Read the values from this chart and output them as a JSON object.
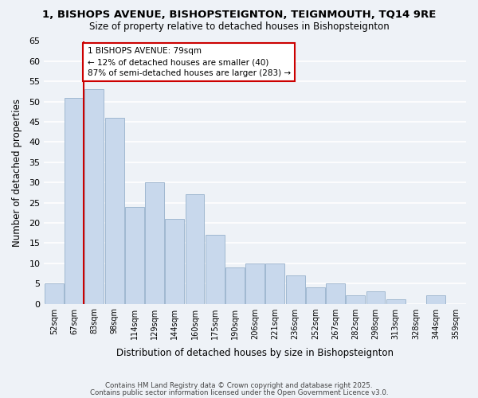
{
  "title1": "1, BISHOPS AVENUE, BISHOPSTEIGNTON, TEIGNMOUTH, TQ14 9RE",
  "title2": "Size of property relative to detached houses in Bishopsteignton",
  "xlabel": "Distribution of detached houses by size in Bishopsteignton",
  "ylabel": "Number of detached properties",
  "bin_labels": [
    "52sqm",
    "67sqm",
    "83sqm",
    "98sqm",
    "114sqm",
    "129sqm",
    "144sqm",
    "160sqm",
    "175sqm",
    "190sqm",
    "206sqm",
    "221sqm",
    "236sqm",
    "252sqm",
    "267sqm",
    "282sqm",
    "298sqm",
    "313sqm",
    "328sqm",
    "344sqm",
    "359sqm"
  ],
  "bar_values": [
    5,
    51,
    53,
    46,
    24,
    30,
    21,
    27,
    17,
    9,
    10,
    10,
    7,
    4,
    5,
    2,
    3,
    1,
    0,
    2,
    0
  ],
  "bar_color": "#c8d8ec",
  "bar_edge_color": "#a0b8d0",
  "vline_x_index": 1,
  "vline_color": "#cc0000",
  "annotation_text": "1 BISHOPS AVENUE: 79sqm\n← 12% of detached houses are smaller (40)\n87% of semi-detached houses are larger (283) →",
  "annotation_box_color": "#ffffff",
  "annotation_box_edge": "#cc0000",
  "ylim": [
    0,
    65
  ],
  "yticks": [
    0,
    5,
    10,
    15,
    20,
    25,
    30,
    35,
    40,
    45,
    50,
    55,
    60,
    65
  ],
  "footer1": "Contains HM Land Registry data © Crown copyright and database right 2025.",
  "footer2": "Contains public sector information licensed under the Open Government Licence v3.0.",
  "bg_color": "#eef2f7",
  "plot_bg_color": "#eef2f7"
}
